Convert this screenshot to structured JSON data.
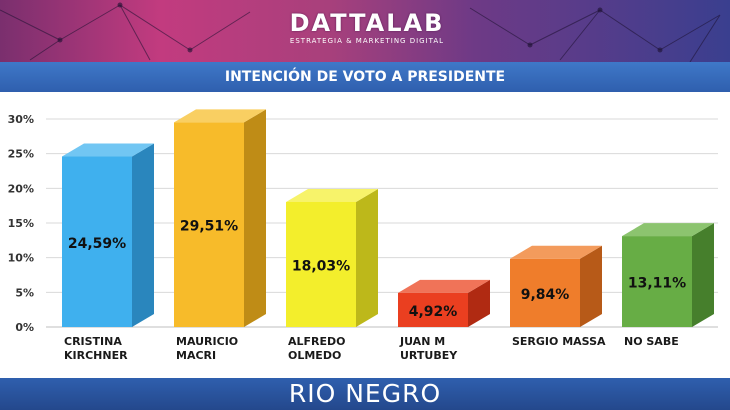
{
  "header": {
    "logo_text": "DATTALAB",
    "logo_tagline": "ESTRATEGIA & MARKETING DIGITAL"
  },
  "title": "INTENCIÓN DE VOTO A PRESIDENTE",
  "footer": {
    "region": "RIO NEGRO"
  },
  "chart_data": {
    "type": "bar",
    "title": "INTENCIÓN DE VOTO A PRESIDENTE",
    "categories": [
      [
        "CRISTINA",
        "KIRCHNER"
      ],
      [
        "MAURICIO",
        "MACRI"
      ],
      [
        "ALFREDO",
        "OLMEDO"
      ],
      [
        "JUAN M",
        "URTUBEY"
      ],
      [
        "SERGIO MASSA"
      ],
      [
        "NO SABE"
      ]
    ],
    "values": [
      24.59,
      29.51,
      18.03,
      4.92,
      9.84,
      13.11
    ],
    "value_labels": [
      "24,59%",
      "29,51%",
      "18,03%",
      "4,92%",
      "9,84%",
      "13,11%"
    ],
    "colors": [
      "#3fb0ee",
      "#f7bb2a",
      "#f3ee2c",
      "#ea3f20",
      "#ef7d2b",
      "#67ad45"
    ],
    "side_colors": [
      "#2a86bd",
      "#bf8c16",
      "#bdb81a",
      "#b02a12",
      "#b75a18",
      "#467f2c"
    ],
    "top_colors": [
      "#71c6f3",
      "#f9cf62",
      "#f7f36a",
      "#f07358",
      "#f39b5c",
      "#8cc46f"
    ],
    "yticks": [
      "0%",
      "5%",
      "10%",
      "15%",
      "20%",
      "25%",
      "30%"
    ],
    "ylim": [
      0,
      30
    ],
    "grid": true,
    "legend": "none"
  }
}
